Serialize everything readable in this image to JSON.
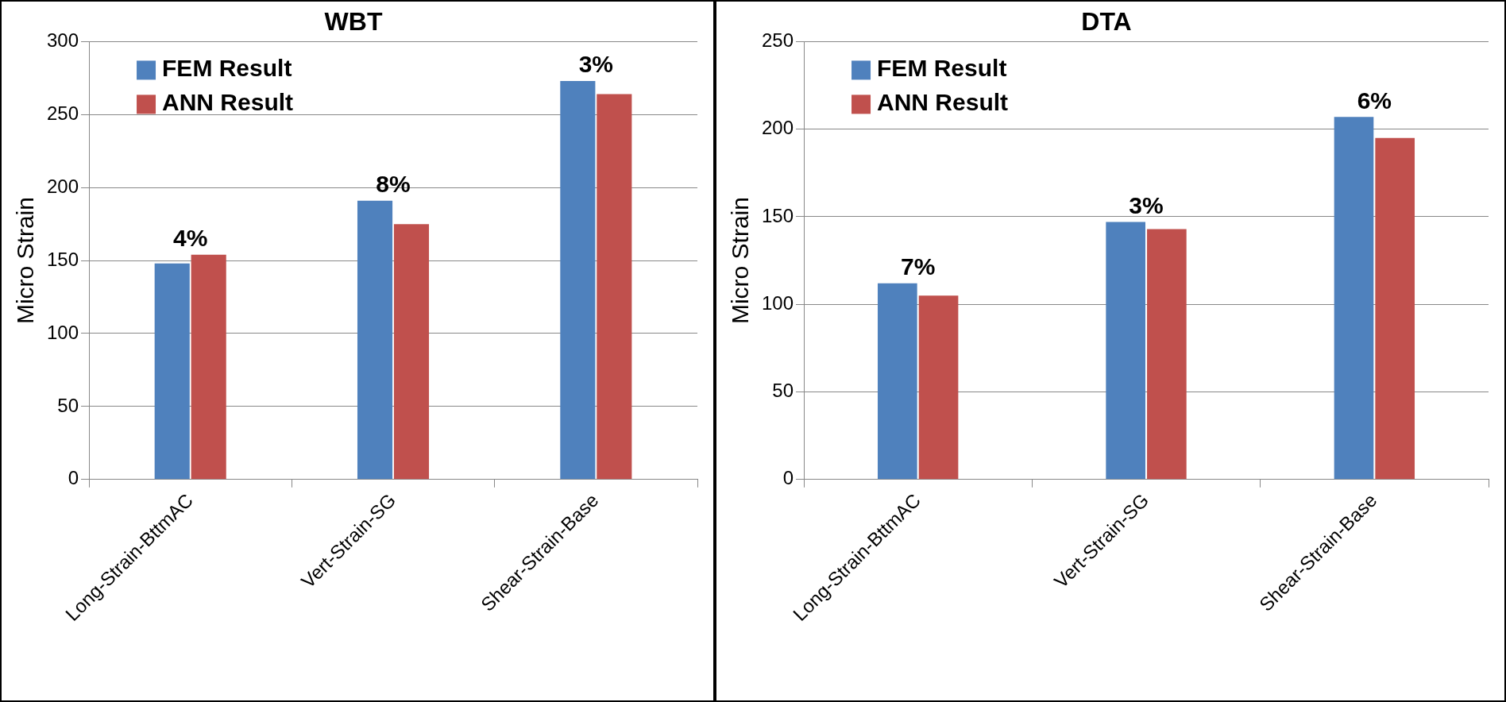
{
  "chart_data": [
    {
      "type": "bar",
      "title": "WBT",
      "ylabel": "Micro Strain",
      "categories": [
        "Long-Strain-BttmAC",
        "Vert-Strain-SG",
        "Shear-Strain-Base"
      ],
      "series": [
        {
          "name": "FEM Result",
          "color": "#4f81bd",
          "values": [
            148,
            191,
            273
          ]
        },
        {
          "name": "ANN Result",
          "color": "#c0504d",
          "values": [
            154,
            175,
            264
          ]
        }
      ],
      "ylim": [
        0,
        300
      ],
      "yticks": [
        0,
        50,
        100,
        150,
        200,
        250,
        300
      ],
      "grid": "y",
      "legend": "top left",
      "annotations": [
        {
          "text": "4%",
          "x": "Long-Strain-BttmAC",
          "y": 154
        },
        {
          "text": "8%",
          "x": "Vert-Strain-SG",
          "y": 191
        },
        {
          "text": "3%",
          "x": "Shear-Strain-Base",
          "y": 273
        }
      ]
    },
    {
      "type": "bar",
      "title": "DTA",
      "ylabel": "Micro Strain",
      "categories": [
        "Long-Strain-BttmAC",
        "Vert-Strain-SG",
        "Shear-Strain-Base"
      ],
      "series": [
        {
          "name": "FEM Result",
          "color": "#4f81bd",
          "values": [
            112,
            147,
            207
          ]
        },
        {
          "name": "ANN Result",
          "color": "#c0504d",
          "values": [
            105,
            143,
            195
          ]
        }
      ],
      "ylim": [
        0,
        250
      ],
      "yticks": [
        0,
        50,
        100,
        150,
        200,
        250
      ],
      "grid": "y",
      "legend": "top left",
      "annotations": [
        {
          "text": "7%",
          "x": "Long-Strain-BttmAC",
          "y": 112
        },
        {
          "text": "3%",
          "x": "Vert-Strain-SG",
          "y": 147
        },
        {
          "text": "6%",
          "x": "Shear-Strain-Base",
          "y": 207
        }
      ]
    }
  ]
}
